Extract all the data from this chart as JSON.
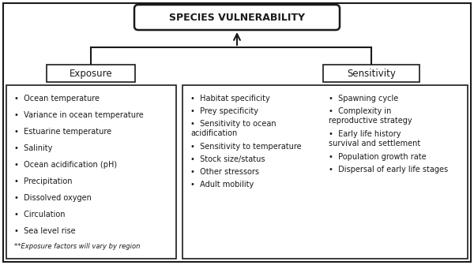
{
  "title": "SPECIES VULNERABILITY",
  "exposure_label": "Exposure",
  "sensitivity_label": "Sensitivity",
  "exposure_items": [
    "Ocean temperature",
    "Variance in ocean temperature",
    "Estuarine temperature",
    "Salinity",
    "Ocean acidification (pH)",
    "Precipitation",
    "Dissolved oxygen",
    "Circulation",
    "Sea level rise"
  ],
  "exposure_footnote": "**Exposure factors will vary by region",
  "sensitivity_col1": [
    "Habitat specificity",
    "Prey specificity",
    "Sensitivity to ocean\nacidification",
    "Sensitivity to temperature",
    "Stock size/status",
    "Other stressors",
    "Adult mobility"
  ],
  "sensitivity_col2": [
    "Spawning cycle",
    "Complexity in\nreproductive strategy",
    "Early life history\nsurvival and settlement",
    "Population growth rate",
    "Dispersal of early life stages"
  ],
  "bg_color": "#ffffff",
  "border_color": "#1a1a1a",
  "text_color": "#1a1a1a",
  "bullet": "•"
}
